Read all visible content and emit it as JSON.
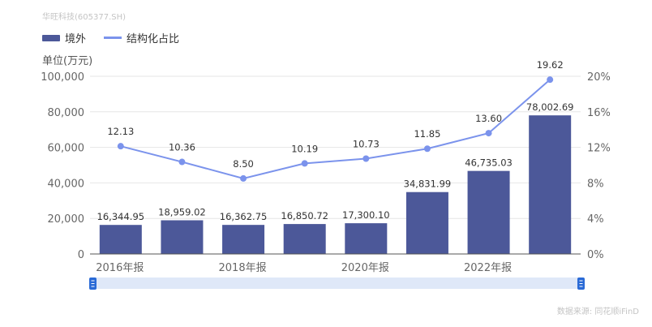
{
  "subtitle": "华旺科技(605377.SH)",
  "legend": {
    "bar": "境外",
    "line": "结构化占比"
  },
  "unit": "单位(万元)",
  "source": "数据来源: 同花顺iFinD",
  "colors": {
    "bar": "#4c5899",
    "line": "#7b93ec",
    "slider_bg": "#dfe8f8",
    "slider_handle": "#2a6ad6"
  },
  "chart_data": {
    "type": "bar+line",
    "categories": [
      "2016年报",
      "",
      "2018年报",
      "",
      "2020年报",
      "",
      "2022年报",
      ""
    ],
    "series": [
      {
        "name": "境外",
        "type": "bar",
        "axis": "left",
        "values": [
          16344.95,
          18959.02,
          16362.75,
          16850.72,
          17300.1,
          34831.99,
          46735.03,
          78002.69
        ],
        "labels": [
          "16,344.95",
          "18,959.02",
          "16,362.75",
          "16,850.72",
          "17,300.10",
          "34,831.99",
          "46,735.03",
          "78,002.69"
        ]
      },
      {
        "name": "结构化占比",
        "type": "line",
        "axis": "right",
        "values": [
          12.13,
          10.36,
          8.5,
          10.19,
          10.73,
          11.85,
          13.6,
          19.62
        ],
        "labels": [
          "12.13",
          "10.36",
          "8.50",
          "10.19",
          "10.73",
          "11.85",
          "13.60",
          "19.62"
        ]
      }
    ],
    "left_axis": {
      "ylim": [
        0,
        100000
      ],
      "ticks": [
        "0",
        "20,000",
        "40,000",
        "60,000",
        "80,000",
        "100,000"
      ]
    },
    "right_axis": {
      "ylim": [
        0,
        20
      ],
      "ticks": [
        "0%",
        "4%",
        "8%",
        "12%",
        "16%",
        "20%"
      ]
    },
    "grid": true,
    "legend_position": "top-left"
  }
}
